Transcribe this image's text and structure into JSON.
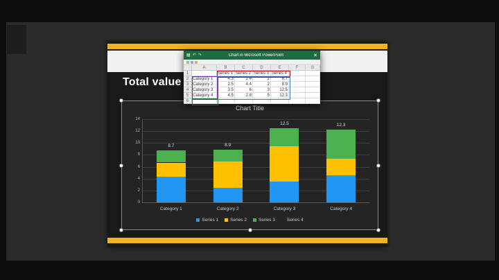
{
  "slide": {
    "title": "Total value",
    "accent_color": "#F2B21B"
  },
  "excel": {
    "window_title": "Chart in Microsoft PowerPoint",
    "close_label": "✕",
    "titlebar_color": "#1E6B41",
    "titlebar_icons": [
      {
        "name": "excel-app-icon",
        "glyph": "▦"
      },
      {
        "name": "undo-icon",
        "glyph": "↶"
      },
      {
        "name": "redo-icon",
        "glyph": "↷"
      }
    ],
    "column_headers": [
      "A",
      "B",
      "C",
      "D",
      "E",
      "F",
      "G"
    ],
    "row_numbers": [
      "1",
      "2",
      "3",
      "4",
      "5",
      "6"
    ],
    "sheet": {
      "series_headers": [
        "Series 1",
        "Series 2",
        "Series 3",
        "Series 4"
      ],
      "rows": [
        {
          "category": "Category 1",
          "values": [
            "4.3",
            "2.4",
            "2",
            "8.7"
          ]
        },
        {
          "category": "Category 2",
          "values": [
            "2.5",
            "4.4",
            "2",
            "8.9"
          ]
        },
        {
          "category": "Category 3",
          "values": [
            "3.5",
            "6",
            "3",
            "12.5"
          ]
        },
        {
          "category": "Category 4",
          "values": [
            "4.5",
            "2.8",
            "5",
            "12.3"
          ]
        }
      ]
    },
    "range_colors": {
      "series_names": "#C00000",
      "categories": "#7030A0",
      "values": "#4472C4",
      "selection": "#217346"
    }
  },
  "chart_data": {
    "type": "bar",
    "stacked": true,
    "title": "Chart Title",
    "categories": [
      "Category 1",
      "Category 2",
      "Category 3",
      "Category 4"
    ],
    "series": [
      {
        "name": "Series 1",
        "color": "#2196F3",
        "values": [
          4.3,
          2.5,
          3.5,
          4.5
        ]
      },
      {
        "name": "Series 2",
        "color": "#FFC000",
        "values": [
          2.4,
          4.4,
          6,
          2.8
        ]
      },
      {
        "name": "Series 3",
        "color": "#4CAF50",
        "values": [
          2,
          2,
          3,
          5
        ]
      },
      {
        "name": "Series 4",
        "color": "transparent",
        "values": [
          0,
          0,
          0,
          0
        ]
      }
    ],
    "total_labels": [
      "8.7",
      "8.9",
      "12.5",
      "12.3"
    ],
    "y_ticks": [
      "0",
      "2",
      "4",
      "6",
      "8",
      "10",
      "12",
      "14"
    ],
    "ylim": [
      0,
      14
    ],
    "grid": true,
    "legend_position": "bottom"
  }
}
